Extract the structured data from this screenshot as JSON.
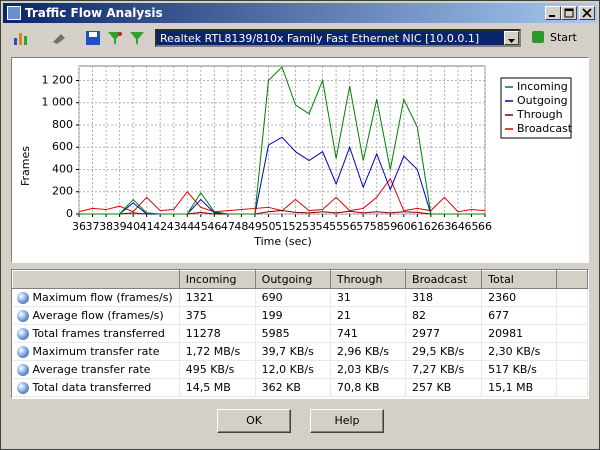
{
  "window": {
    "title": "Traffic Flow Analysis"
  },
  "toolbar": {
    "adapter": "Realtek RTL8139/810x Family Fast Ethernet NIC [10.0.0.1]",
    "start": "Start"
  },
  "chart_data": {
    "type": "line",
    "ylabel": "Frames",
    "xlabel": "Time (sec)",
    "x": [
      36,
      37,
      38,
      39,
      40,
      41,
      42,
      43,
      44,
      45,
      46,
      47,
      48,
      49,
      50,
      51,
      52,
      53,
      54,
      55,
      56,
      57,
      58,
      59,
      60,
      61,
      62,
      63,
      64,
      65,
      66
    ],
    "xlim": [
      36,
      66
    ],
    "xticks": [
      36,
      37,
      38,
      39,
      40,
      41,
      42,
      43,
      44,
      45,
      46,
      47,
      48,
      49,
      50,
      51,
      52,
      53,
      54,
      55,
      56,
      57,
      58,
      59,
      60,
      61,
      62,
      63,
      64,
      65,
      66
    ],
    "ylim": [
      0,
      1330
    ],
    "yticks": [
      0,
      200,
      400,
      600,
      800,
      {
        "value": 1000,
        "label": "1 000"
      },
      {
        "value": 1200,
        "label": "1 200"
      }
    ],
    "grid": true,
    "legend": "upper right",
    "series": [
      {
        "name": "Incoming",
        "color": "#008000",
        "values": [
          0,
          0,
          0,
          0,
          130,
          10,
          0,
          0,
          0,
          190,
          20,
          0,
          0,
          0,
          1200,
          1321,
          980,
          900,
          1200,
          500,
          1150,
          480,
          1030,
          400,
          1030,
          780,
          0,
          0,
          0,
          0,
          0
        ]
      },
      {
        "name": "Outgoing",
        "color": "#0000c0",
        "values": [
          0,
          0,
          0,
          0,
          100,
          0,
          0,
          0,
          0,
          130,
          10,
          0,
          0,
          0,
          620,
          690,
          560,
          480,
          560,
          270,
          600,
          240,
          540,
          220,
          520,
          400,
          0,
          0,
          0,
          0,
          0
        ]
      },
      {
        "name": "Through",
        "color": "#800000",
        "values": [
          0,
          0,
          0,
          0,
          10,
          0,
          0,
          0,
          0,
          15,
          0,
          0,
          0,
          0,
          20,
          31,
          15,
          10,
          20,
          10,
          25,
          10,
          20,
          10,
          20,
          15,
          0,
          0,
          0,
          0,
          0
        ]
      },
      {
        "name": "Broadcast",
        "color": "#e00000",
        "values": [
          20,
          50,
          40,
          70,
          20,
          150,
          30,
          40,
          200,
          60,
          20,
          30,
          40,
          50,
          60,
          30,
          130,
          30,
          40,
          150,
          30,
          50,
          150,
          318,
          30,
          50,
          30,
          150,
          20,
          40,
          30
        ]
      }
    ]
  },
  "table": {
    "header": [
      "",
      "Incoming",
      "Outgoing",
      "Through",
      "Broadcast",
      "Total"
    ],
    "rows": [
      [
        "Maximum flow (frames/s)",
        "1321",
        "690",
        "31",
        "318",
        "2360"
      ],
      [
        "Average flow (frames/s)",
        "375",
        "199",
        "21",
        "82",
        "677"
      ],
      [
        "Total frames transferred",
        "11278",
        "5985",
        "741",
        "2977",
        "20981"
      ],
      [
        "Maximum transfer rate",
        "1,72 MB/s",
        "39,7 KB/s",
        "2,96 KB/s",
        "29,5 KB/s",
        "2,30 KB/s"
      ],
      [
        "Average transfer rate",
        "495 KB/s",
        "12,0 KB/s",
        "2,03 KB/s",
        "7,27 KB/s",
        "517 KB/s"
      ],
      [
        "Total data transferred",
        "14,5 MB",
        "362 KB",
        "70,8 KB",
        "257 KB",
        "15,1 MB"
      ]
    ]
  },
  "buttons": {
    "ok": "OK",
    "help": "Help"
  }
}
